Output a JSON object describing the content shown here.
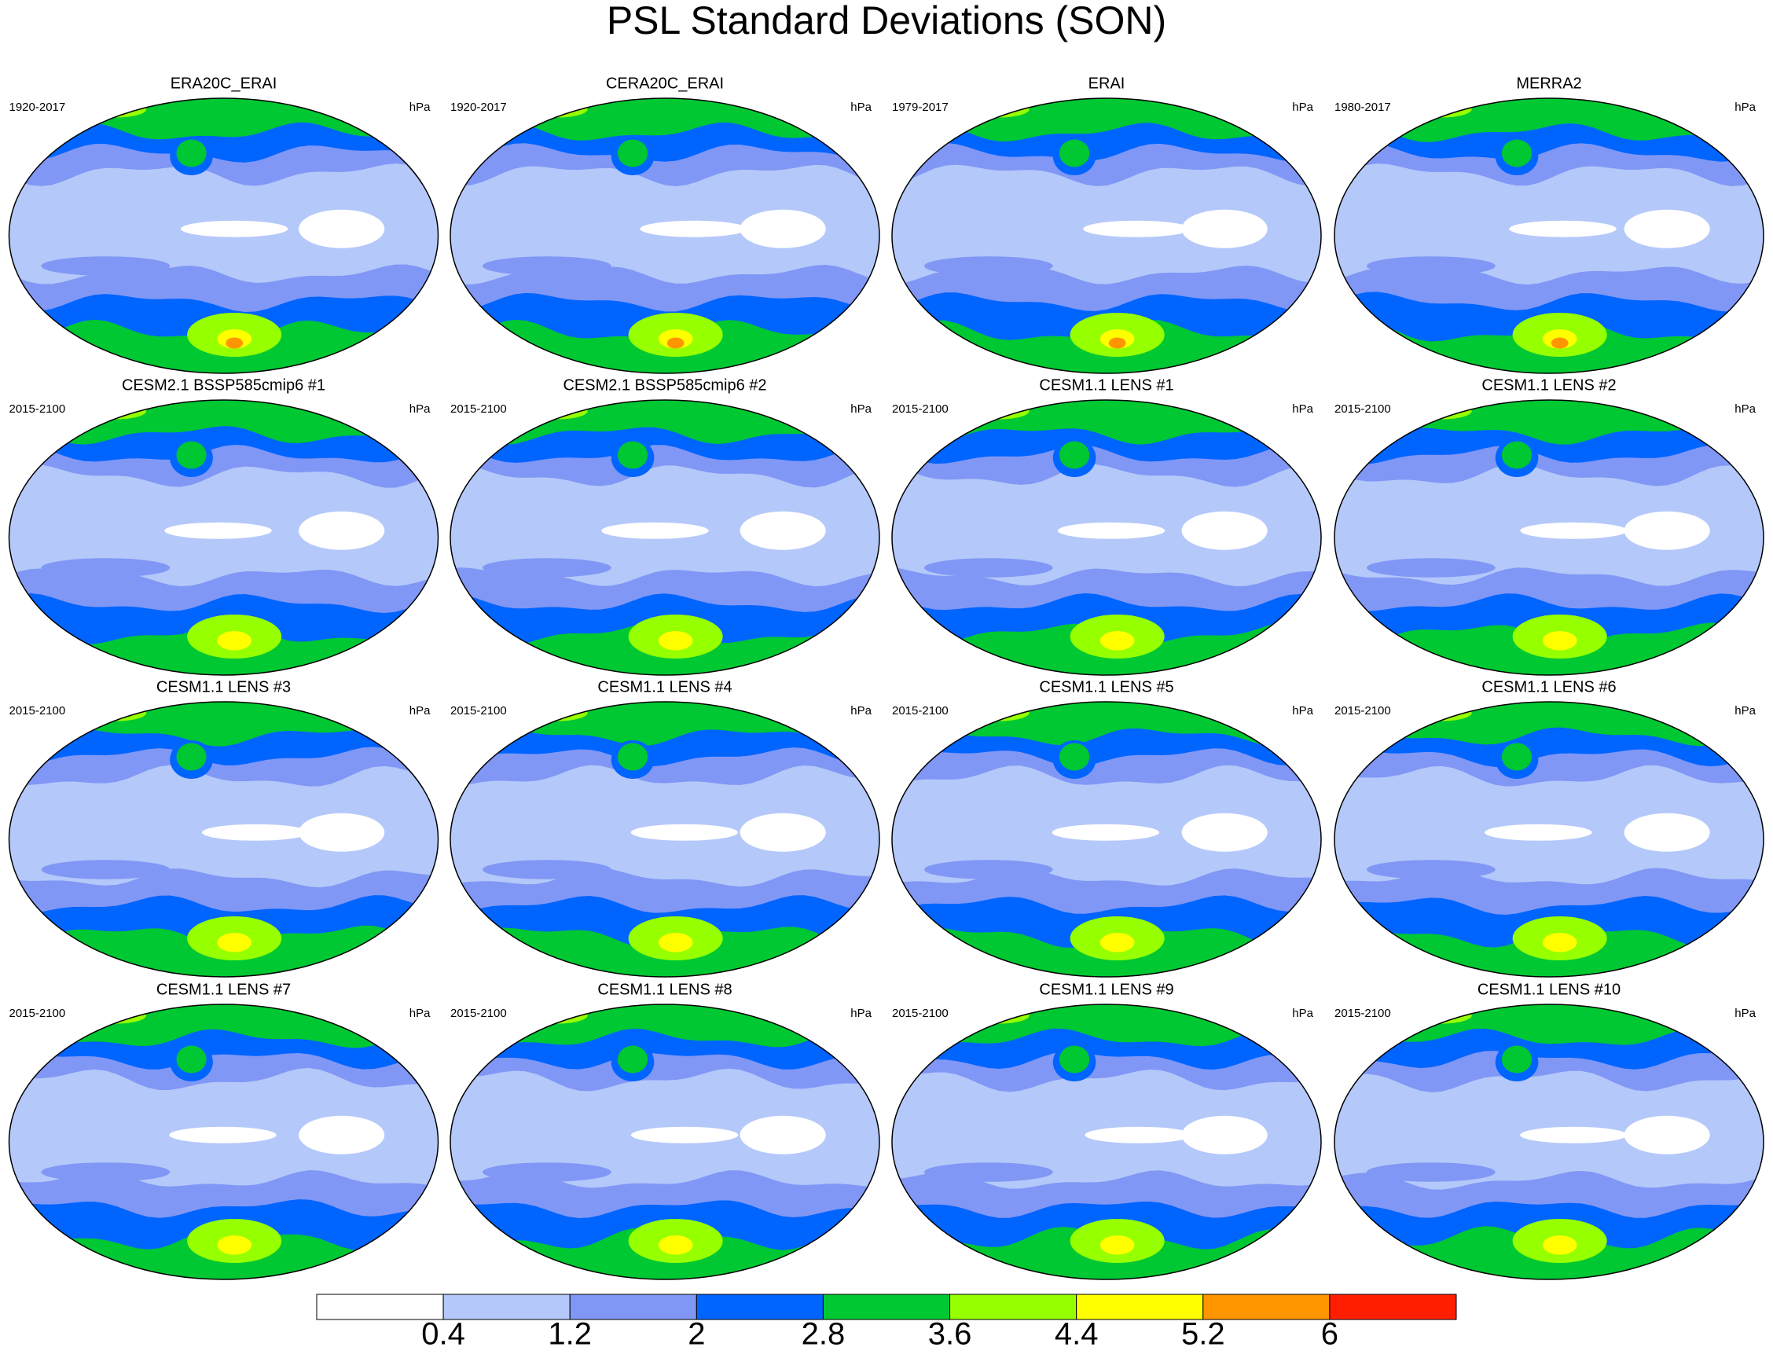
{
  "title": "PSL Standard Deviations (SON)",
  "panels": [
    {
      "title": "ERA20C_ERAI",
      "period": "1920-2017",
      "units": "hPa"
    },
    {
      "title": "CERA20C_ERAI",
      "period": "1920-2017",
      "units": "hPa"
    },
    {
      "title": "ERAI",
      "period": "1979-2017",
      "units": "hPa"
    },
    {
      "title": "MERRA2",
      "period": "1980-2017",
      "units": "hPa"
    },
    {
      "title": "CESM2.1 BSSP585cmip6 #1",
      "period": "2015-2100",
      "units": "hPa"
    },
    {
      "title": "CESM2.1 BSSP585cmip6 #2",
      "period": "2015-2100",
      "units": "hPa"
    },
    {
      "title": "CESM1.1 LENS #1",
      "period": "2015-2100",
      "units": "hPa"
    },
    {
      "title": "CESM1.1 LENS #2",
      "period": "2015-2100",
      "units": "hPa"
    },
    {
      "title": "CESM1.1 LENS #3",
      "period": "2015-2100",
      "units": "hPa"
    },
    {
      "title": "CESM1.1 LENS #4",
      "period": "2015-2100",
      "units": "hPa"
    },
    {
      "title": "CESM1.1 LENS #5",
      "period": "2015-2100",
      "units": "hPa"
    },
    {
      "title": "CESM1.1 LENS #6",
      "period": "2015-2100",
      "units": "hPa"
    },
    {
      "title": "CESM1.1 LENS #7",
      "period": "2015-2100",
      "units": "hPa"
    },
    {
      "title": "CESM1.1 LENS #8",
      "period": "2015-2100",
      "units": "hPa"
    },
    {
      "title": "CESM1.1 LENS #9",
      "period": "2015-2100",
      "units": "hPa"
    },
    {
      "title": "CESM1.1 LENS #10",
      "period": "2015-2100",
      "units": "hPa"
    }
  ],
  "colorbar": {
    "levels": [
      0.4,
      1.2,
      2,
      2.8,
      3.6,
      4.4,
      5.2,
      6
    ],
    "colors": [
      "#ffffff",
      "#b4c8fa",
      "#8097f5",
      "#0064ff",
      "#00c832",
      "#96ff00",
      "#ffff00",
      "#ff9600",
      "#ff1e00"
    ]
  }
}
